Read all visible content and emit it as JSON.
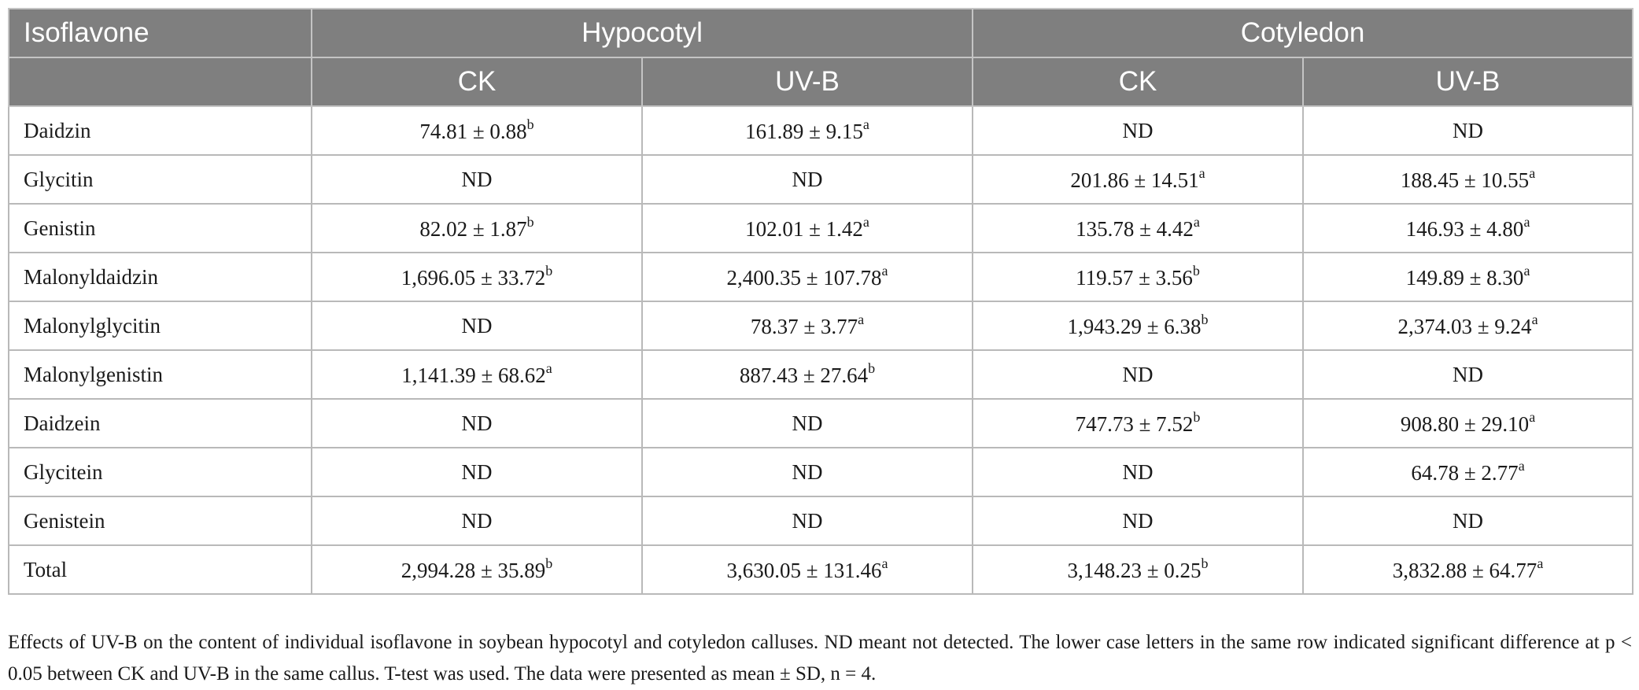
{
  "table": {
    "header": {
      "row_label": "Isoflavone",
      "groups": [
        "Hypocotyl",
        "Cotyledon"
      ],
      "subheaders": [
        "CK",
        "UV-B",
        "CK",
        "UV-B"
      ]
    },
    "rows": [
      {
        "name": "Daidzin",
        "cells": [
          {
            "value": "74.81 ± 0.88",
            "sup": "b"
          },
          {
            "value": "161.89 ± 9.15",
            "sup": "a"
          },
          {
            "value": "ND",
            "sup": ""
          },
          {
            "value": "ND",
            "sup": ""
          }
        ]
      },
      {
        "name": "Glycitin",
        "cells": [
          {
            "value": "ND",
            "sup": ""
          },
          {
            "value": "ND",
            "sup": ""
          },
          {
            "value": "201.86 ± 14.51",
            "sup": "a"
          },
          {
            "value": "188.45 ± 10.55",
            "sup": "a"
          }
        ]
      },
      {
        "name": "Genistin",
        "cells": [
          {
            "value": "82.02 ± 1.87",
            "sup": "b"
          },
          {
            "value": "102.01 ± 1.42",
            "sup": "a"
          },
          {
            "value": "135.78 ± 4.42",
            "sup": "a"
          },
          {
            "value": "146.93 ± 4.80",
            "sup": "a"
          }
        ]
      },
      {
        "name": "Malonyldaidzin",
        "cells": [
          {
            "value": "1,696.05 ± 33.72",
            "sup": "b"
          },
          {
            "value": "2,400.35 ± 107.78",
            "sup": "a"
          },
          {
            "value": "119.57 ± 3.56",
            "sup": "b"
          },
          {
            "value": "149.89 ± 8.30",
            "sup": "a"
          }
        ]
      },
      {
        "name": "Malonylglycitin",
        "cells": [
          {
            "value": "ND",
            "sup": ""
          },
          {
            "value": "78.37 ± 3.77",
            "sup": "a"
          },
          {
            "value": "1,943.29 ± 6.38",
            "sup": "b"
          },
          {
            "value": "2,374.03 ± 9.24",
            "sup": "a"
          }
        ]
      },
      {
        "name": "Malonylgenistin",
        "cells": [
          {
            "value": "1,141.39 ± 68.62",
            "sup": "a"
          },
          {
            "value": "887.43 ± 27.64",
            "sup": "b"
          },
          {
            "value": "ND",
            "sup": ""
          },
          {
            "value": "ND",
            "sup": ""
          }
        ]
      },
      {
        "name": "Daidzein",
        "cells": [
          {
            "value": "ND",
            "sup": ""
          },
          {
            "value": "ND",
            "sup": ""
          },
          {
            "value": "747.73 ± 7.52",
            "sup": "b"
          },
          {
            "value": "908.80 ± 29.10",
            "sup": "a"
          }
        ]
      },
      {
        "name": "Glycitein",
        "cells": [
          {
            "value": "ND",
            "sup": ""
          },
          {
            "value": "ND",
            "sup": ""
          },
          {
            "value": "ND",
            "sup": ""
          },
          {
            "value": "64.78 ± 2.77",
            "sup": "a"
          }
        ]
      },
      {
        "name": "Genistein",
        "cells": [
          {
            "value": "ND",
            "sup": ""
          },
          {
            "value": "ND",
            "sup": ""
          },
          {
            "value": "ND",
            "sup": ""
          },
          {
            "value": "ND",
            "sup": ""
          }
        ]
      },
      {
        "name": "Total",
        "cells": [
          {
            "value": "2,994.28 ± 35.89",
            "sup": "b"
          },
          {
            "value": "3,630.05 ± 131.46",
            "sup": "a"
          },
          {
            "value": "3,148.23 ± 0.25",
            "sup": "b"
          },
          {
            "value": "3,832.88 ± 64.77",
            "sup": "a"
          }
        ]
      }
    ]
  },
  "caption": "Effects of UV-B on the content of individual isoflavone in soybean hypocotyl and cotyledon calluses. ND meant not detected. The lower case letters in the same row indicated significant difference at p < 0.05 between CK and UV-B in the same callus. T-test was used. The data were presented as mean ± SD, n = 4.",
  "colors": {
    "header_bg": "#7f7f7f",
    "header_text": "#ffffff",
    "border": "#b9b9b9"
  }
}
